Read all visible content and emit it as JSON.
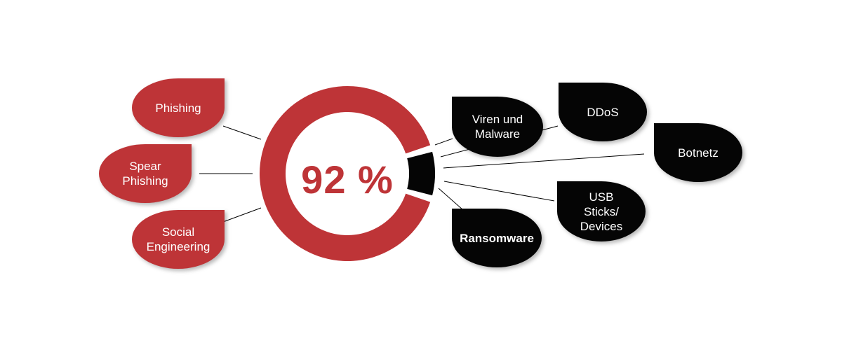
{
  "center": {
    "percent": "92 %"
  },
  "colors": {
    "red": "#be3437",
    "black": "#050505",
    "white": "#ffffff"
  },
  "left_items": [
    {
      "label": "Phishing"
    },
    {
      "label": "Spear Phishing"
    },
    {
      "label": "Social Engineering"
    }
  ],
  "right_items": [
    {
      "label": "Viren und Malware"
    },
    {
      "label": "DDoS"
    },
    {
      "label": "Botnetz"
    },
    {
      "label": "USB Sticks/ Devices"
    },
    {
      "label": "Ransomware"
    }
  ],
  "chart_data": {
    "type": "pie",
    "categories": [
      "",
      ""
    ],
    "values": [
      92,
      8
    ]
  }
}
